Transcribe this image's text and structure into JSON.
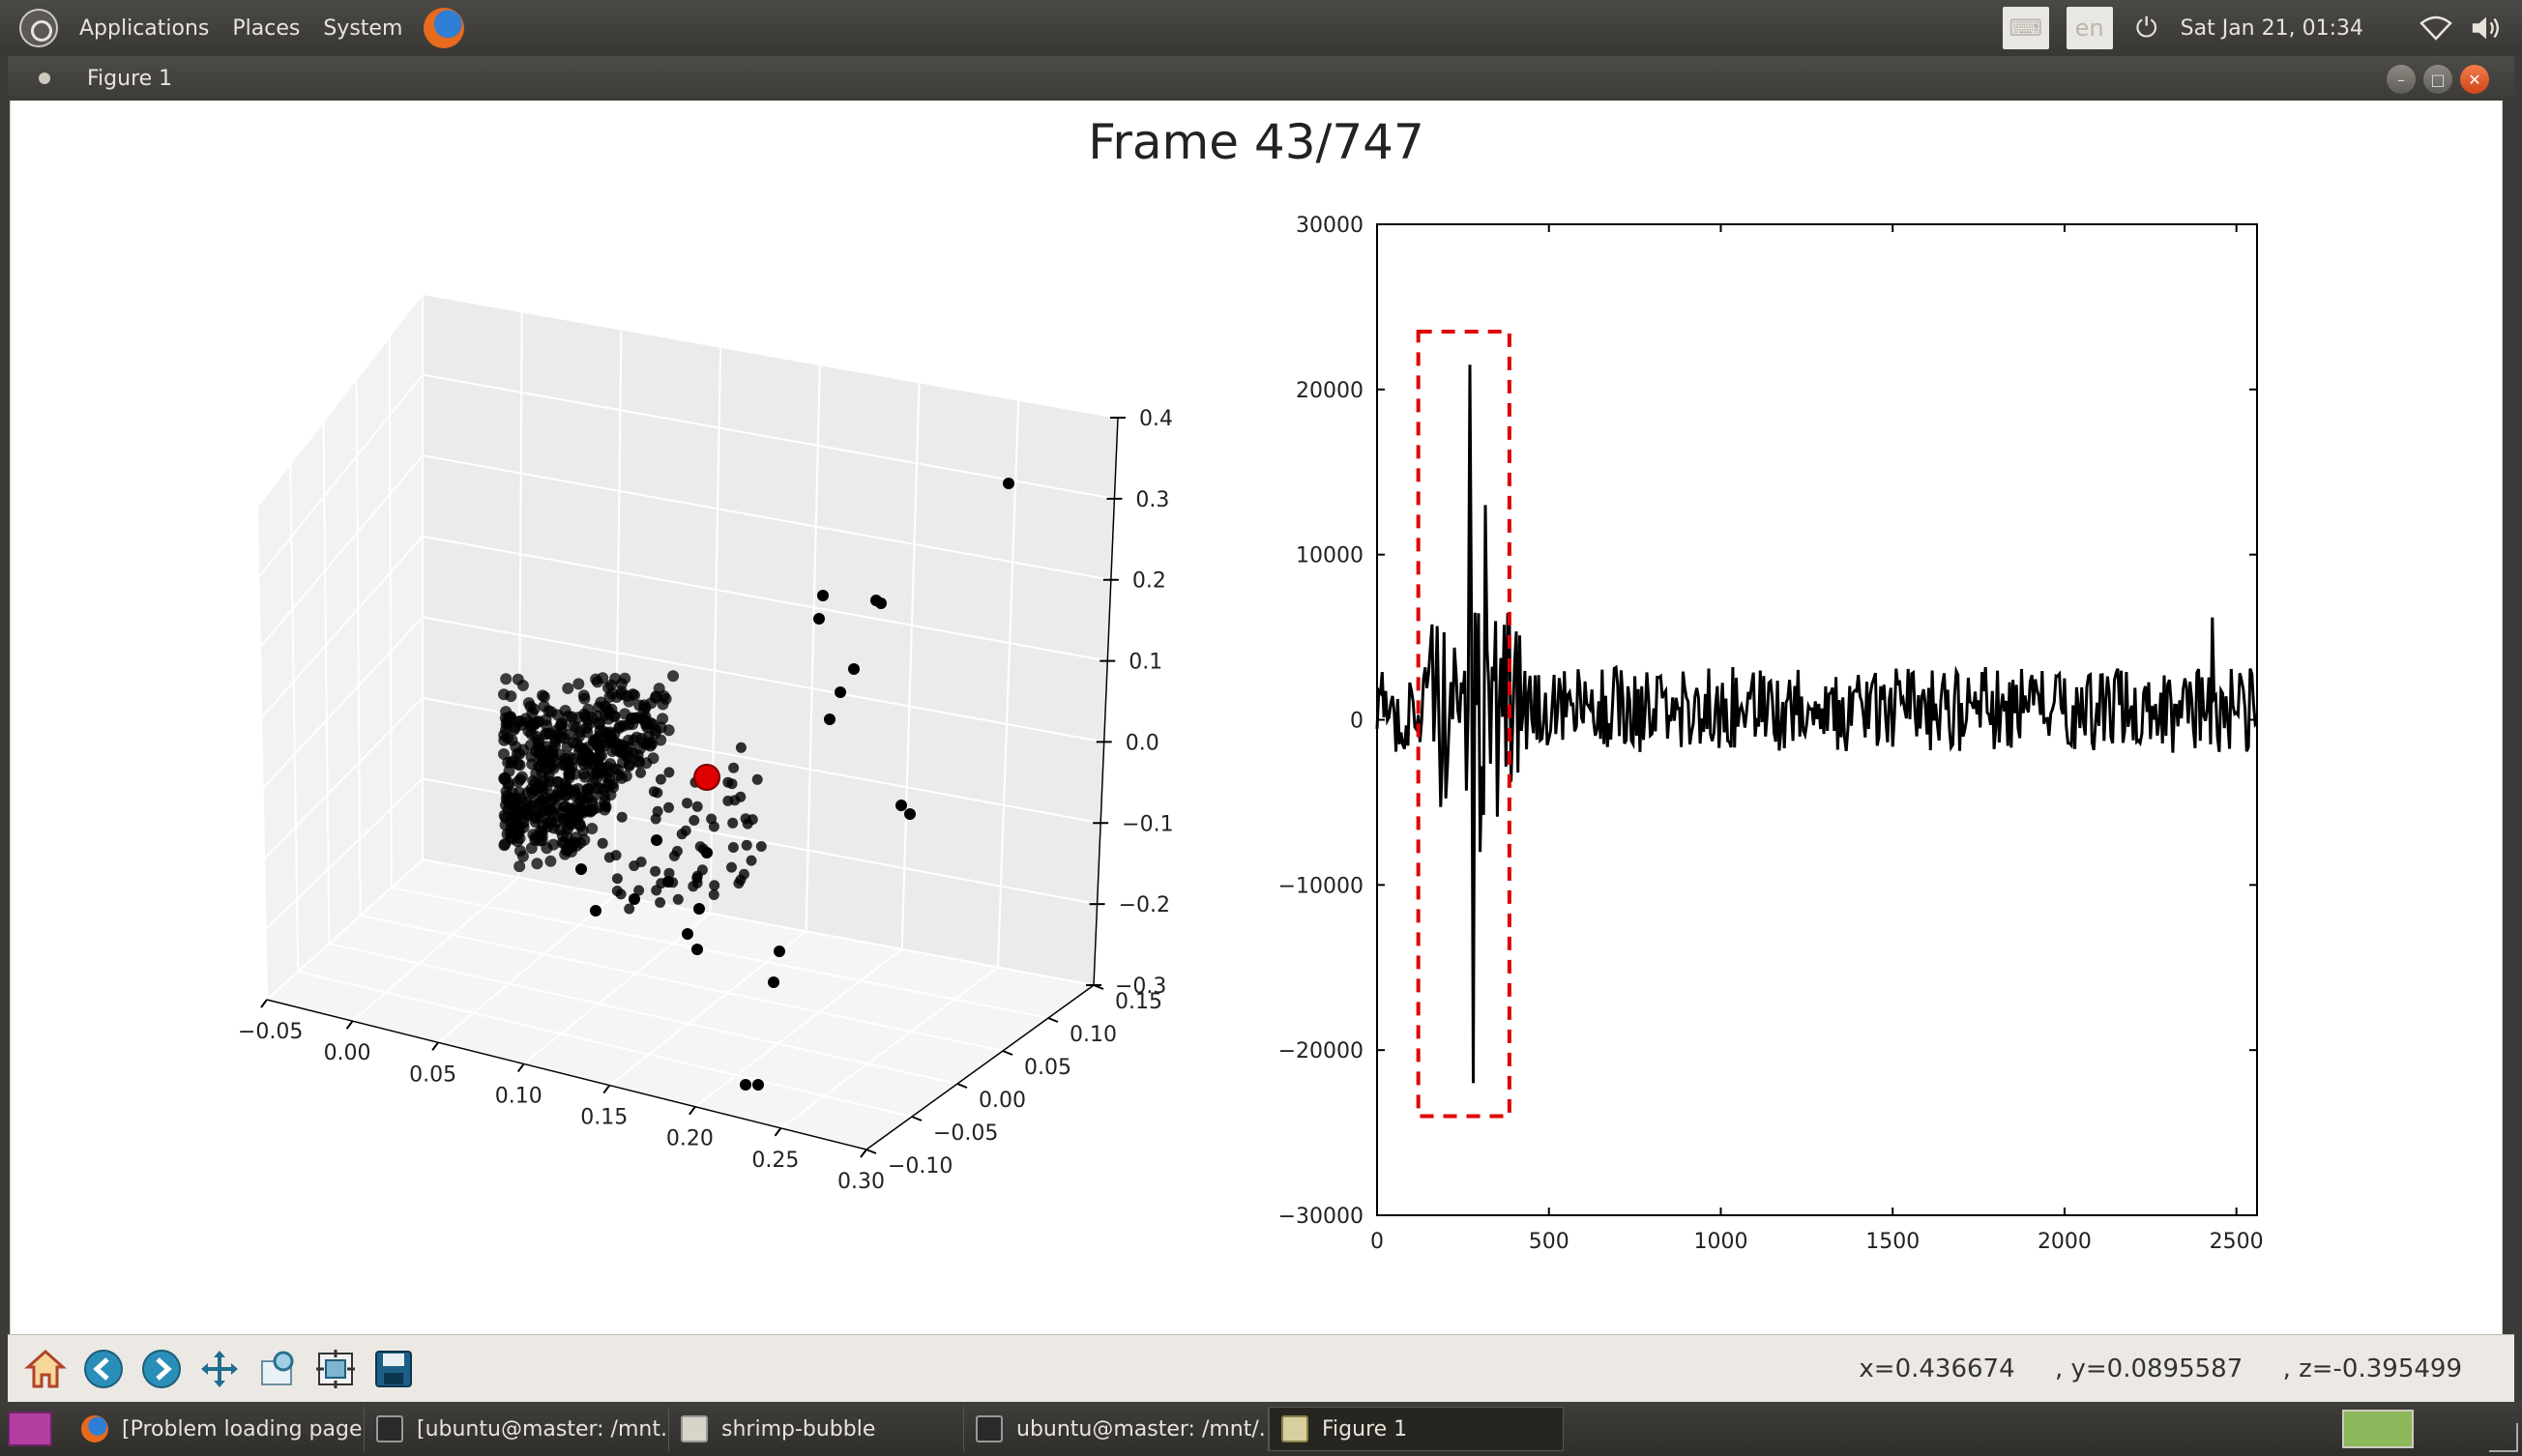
{
  "top_panel": {
    "menus": [
      "Applications",
      "Places",
      "System"
    ],
    "keyboard_layout": "en",
    "clock": "Sat Jan 21, 01:34"
  },
  "window": {
    "title": "Figure 1"
  },
  "figure": {
    "title": "Frame 43/747"
  },
  "chart_data": [
    {
      "type": "scatter",
      "projection": "3d",
      "title": "",
      "x_ticks": [
        "−0.05",
        "0.00",
        "0.05",
        "0.10",
        "0.15",
        "0.20",
        "0.25",
        "0.30"
      ],
      "y_ticks": [
        "−0.10",
        "−0.05",
        "0.00",
        "0.05",
        "0.10",
        "0.15"
      ],
      "z_ticks": [
        "0.4",
        "0.3",
        "0.2",
        "0.1",
        "0.0",
        "−0.1",
        "−0.2",
        "−0.3"
      ],
      "grid": true,
      "series": [
        {
          "color": "#000000",
          "description": "dense cluster near origin plus scattered outliers"
        },
        {
          "color": "#e00000",
          "description": "single highlighted current point"
        }
      ]
    },
    {
      "type": "line",
      "title": "",
      "xlim": [
        0,
        2560
      ],
      "ylim": [
        -30000,
        30000
      ],
      "x_ticks": [
        "0",
        "500",
        "1000",
        "1500",
        "2000",
        "2500"
      ],
      "y_ticks": [
        "30000",
        "20000",
        "10000",
        "0",
        "−10000",
        "−20000",
        "−30000"
      ],
      "line_color": "#000000",
      "highlight_window": {
        "x_start": 120,
        "x_end": 385,
        "y_low": -24000,
        "y_high": 23500,
        "color": "#e00000",
        "style": "dashed"
      },
      "peaks": [
        {
          "x": 270,
          "y": 21500
        },
        {
          "x": 280,
          "y": -22000
        },
        {
          "x": 315,
          "y": 13000
        },
        {
          "x": 300,
          "y": -8000
        },
        {
          "x": 2430,
          "y": 6200
        }
      ]
    }
  ],
  "toolbar": {
    "buttons": [
      "home-icon",
      "back-icon",
      "forward-icon",
      "pan-icon",
      "zoom-icon",
      "configure-subplots-icon",
      "save-icon"
    ],
    "coordinates": "x=0.436674     , y=0.0895587     , z=-0.395499"
  },
  "taskbar": {
    "tasks": [
      {
        "label": "[Problem loading page..."
      },
      {
        "label": "[ubuntu@master: /mnt..."
      },
      {
        "label": "shrimp-bubble"
      },
      {
        "label": "ubuntu@master: /mnt/..."
      },
      {
        "label": "Figure 1"
      }
    ]
  }
}
